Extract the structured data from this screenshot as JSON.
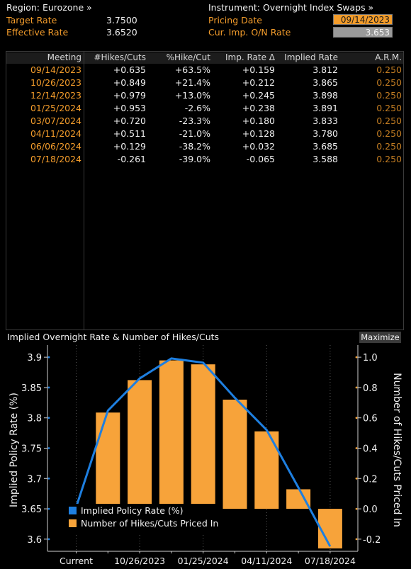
{
  "header": {
    "region_label": "Region: Eurozone »",
    "target_rate_label": "Target Rate",
    "target_rate_value": "3.7500",
    "effective_rate_label": "Effective Rate",
    "effective_rate_value": "3.6520",
    "instrument_label": "Instrument: Overnight Index Swaps »",
    "pricing_date_label": "Pricing Date",
    "pricing_date_value": "09/14/2023",
    "cur_imp_label": "Cur. Imp. O/N Rate",
    "cur_imp_value": "3.653"
  },
  "table": {
    "columns": [
      "Meeting",
      "#Hikes/Cuts",
      "%Hike/Cut",
      "Imp. Rate Δ",
      "Implied Rate",
      "A.R.M."
    ],
    "rows": [
      [
        "09/14/2023",
        "+0.635",
        "+63.5%",
        "+0.159",
        "3.812",
        "0.250"
      ],
      [
        "10/26/2023",
        "+0.849",
        "+21.4%",
        "+0.212",
        "3.865",
        "0.250"
      ],
      [
        "12/14/2023",
        "+0.979",
        "+13.0%",
        "+0.245",
        "3.898",
        "0.250"
      ],
      [
        "01/25/2024",
        "+0.953",
        "-2.6%",
        "+0.238",
        "3.891",
        "0.250"
      ],
      [
        "03/07/2024",
        "+0.720",
        "-23.3%",
        "+0.180",
        "3.833",
        "0.250"
      ],
      [
        "04/11/2024",
        "+0.511",
        "-21.0%",
        "+0.128",
        "3.780",
        "0.250"
      ],
      [
        "06/06/2024",
        "+0.129",
        "-38.2%",
        "+0.032",
        "3.685",
        "0.250"
      ],
      [
        "07/18/2024",
        "-0.261",
        "-39.0%",
        "-0.065",
        "3.588",
        "0.250"
      ]
    ]
  },
  "chart": {
    "title": "Implied Overnight Rate & Number of Hikes/Cuts",
    "maximize_label": "Maximize"
  },
  "chart_data": {
    "type": "bar",
    "categories": [
      "Current",
      "09/14/2023",
      "10/26/2023",
      "12/14/2023",
      "01/25/2024",
      "03/07/2024",
      "04/11/2024",
      "06/06/2024",
      "07/18/2024"
    ],
    "x_tick_labels": [
      "Current",
      "10/26/2023",
      "01/25/2024",
      "04/11/2024",
      "07/18/2024"
    ],
    "series": [
      {
        "name": "Implied Policy Rate (%)",
        "kind": "line",
        "axis": "left",
        "color": "#1e7fe0",
        "values": [
          3.653,
          3.812,
          3.865,
          3.898,
          3.891,
          3.833,
          3.78,
          3.685,
          3.588
        ]
      },
      {
        "name": "Number of Hikes/Cuts Priced In",
        "kind": "bar",
        "axis": "right",
        "color": "#f7a33a",
        "values": [
          0.0,
          0.635,
          0.849,
          0.979,
          0.953,
          0.72,
          0.511,
          0.129,
          -0.261
        ]
      }
    ],
    "ylabel_left": "Implied Policy Rate (%)",
    "ylabel_right": "Number of Hikes/Cuts Priced In",
    "ylim_left": [
      3.58,
      3.92
    ],
    "ylim_right": [
      -0.28,
      1.08
    ],
    "yticks_left": [
      "3.9",
      "3.85",
      "3.8",
      "3.75",
      "3.7",
      "3.65",
      "3.6"
    ],
    "yticks_right": [
      "1.0",
      "0.8",
      "0.6",
      "0.4",
      "0.2",
      "0.0",
      "-0.2"
    ],
    "legend_position": "bottom-left",
    "grid": "vertical dotted"
  }
}
